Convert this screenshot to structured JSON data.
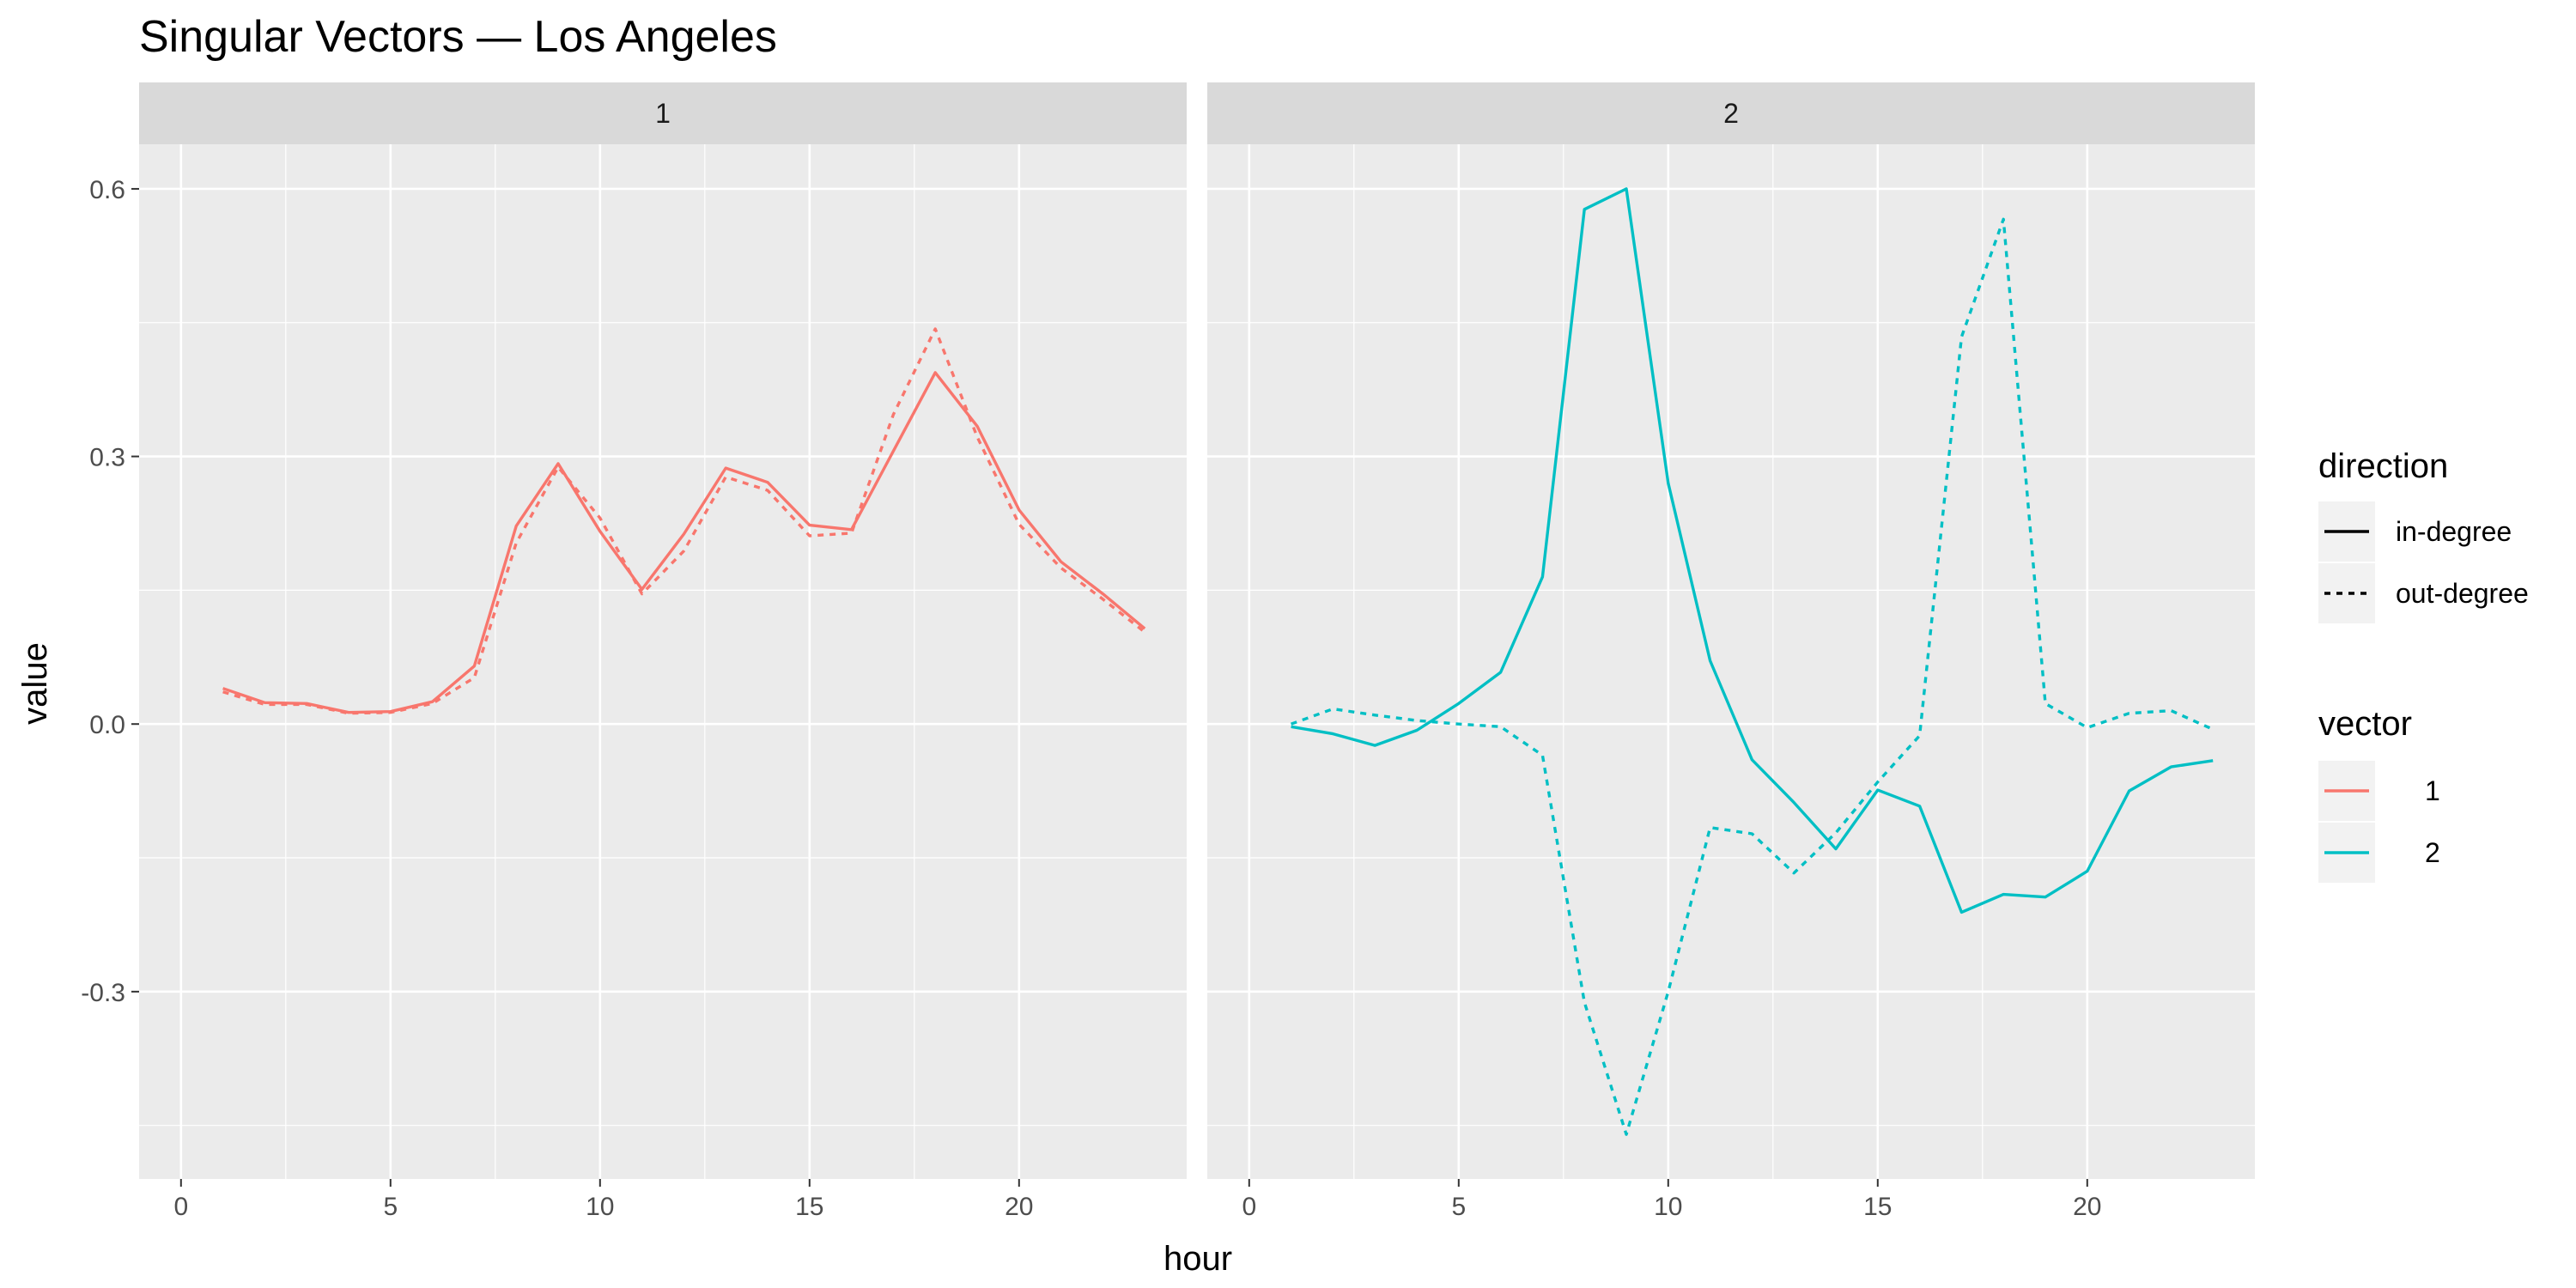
{
  "chart_data": {
    "type": "line",
    "title": "Singular Vectors — Los Angeles",
    "xlabel": "hour",
    "ylabel": "value",
    "xlim": [
      -1,
      24
    ],
    "ylim": [
      -0.51,
      0.65
    ],
    "x_ticks": [
      0,
      5,
      10,
      15,
      20
    ],
    "y_ticks": [
      -0.3,
      0.0,
      0.3,
      0.6
    ],
    "y_tick_labels": [
      "-0.3",
      "0.0",
      "0.3",
      "0.6"
    ],
    "x_tick_labels": [
      "0",
      "5",
      "10",
      "15",
      "20"
    ],
    "grid": true,
    "legend_position": "right",
    "legends": {
      "direction": {
        "title": "direction",
        "entries": [
          {
            "label": "in-degree",
            "linetype": "solid"
          },
          {
            "label": "out-degree",
            "linetype": "dashed"
          }
        ]
      },
      "vector": {
        "title": "vector",
        "entries": [
          {
            "label": "1",
            "color": "#F8766D"
          },
          {
            "label": "2",
            "color": "#00BFC4"
          }
        ]
      }
    },
    "panels": [
      {
        "strip": "1",
        "vector": "1",
        "color": "#F8766D",
        "series": [
          {
            "direction": "in-degree",
            "x": [
              1,
              2,
              3,
              4,
              5,
              6,
              7,
              8,
              9,
              10,
              11,
              12,
              13,
              14,
              15,
              16,
              17,
              18,
              19,
              20,
              21,
              22,
              23
            ],
            "y": [
              0.04,
              0.024,
              0.023,
              0.013,
              0.014,
              0.025,
              0.065,
              0.222,
              0.292,
              0.216,
              0.151,
              0.213,
              0.287,
              0.271,
              0.223,
              0.218,
              0.306,
              0.394,
              0.334,
              0.24,
              0.182,
              0.146,
              0.107
            ]
          },
          {
            "direction": "out-degree",
            "x": [
              1,
              2,
              3,
              4,
              5,
              6,
              7,
              8,
              9,
              10,
              11,
              12,
              13,
              14,
              15,
              16,
              17,
              18,
              19,
              20,
              21,
              22,
              23
            ],
            "y": [
              0.036,
              0.022,
              0.022,
              0.012,
              0.013,
              0.023,
              0.052,
              0.203,
              0.288,
              0.231,
              0.146,
              0.194,
              0.277,
              0.262,
              0.211,
              0.214,
              0.347,
              0.443,
              0.322,
              0.224,
              0.175,
              0.14,
              0.103
            ]
          }
        ]
      },
      {
        "strip": "2",
        "vector": "2",
        "color": "#00BFC4",
        "series": [
          {
            "direction": "in-degree",
            "x": [
              1,
              2,
              3,
              4,
              5,
              6,
              7,
              8,
              9,
              10,
              11,
              12,
              13,
              14,
              15,
              16,
              17,
              18,
              19,
              20,
              21,
              22,
              23
            ],
            "y": [
              -0.003,
              -0.011,
              -0.024,
              -0.007,
              0.023,
              0.058,
              0.165,
              0.577,
              0.6,
              0.27,
              0.071,
              -0.04,
              -0.088,
              -0.14,
              -0.074,
              -0.092,
              -0.211,
              -0.191,
              -0.194,
              -0.165,
              -0.075,
              -0.048,
              -0.041
            ]
          },
          {
            "direction": "out-degree",
            "x": [
              1,
              2,
              3,
              4,
              5,
              6,
              7,
              8,
              9,
              10,
              11,
              12,
              13,
              14,
              15,
              16,
              17,
              18,
              19,
              20,
              21,
              22,
              23
            ],
            "y": [
              0.0,
              0.017,
              0.01,
              0.004,
              0.0,
              -0.003,
              -0.035,
              -0.312,
              -0.46,
              -0.3,
              -0.116,
              -0.123,
              -0.167,
              -0.122,
              -0.065,
              -0.013,
              0.434,
              0.566,
              0.023,
              -0.004,
              0.012,
              0.015,
              -0.006
            ]
          }
        ]
      }
    ]
  }
}
